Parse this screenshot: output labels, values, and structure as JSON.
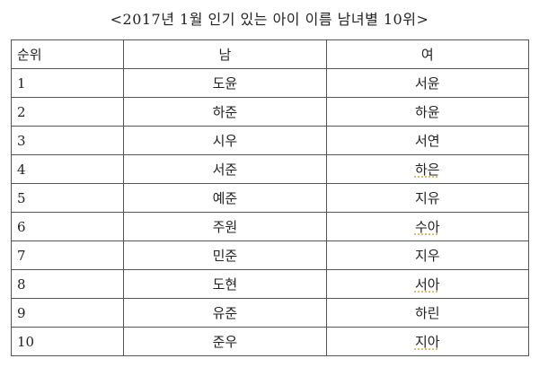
{
  "title": "<2017년 1월 인기 있는 아이 이름 남녀별 10위>",
  "table": {
    "headers": [
      "순위",
      "남",
      "여"
    ],
    "rows": [
      [
        "1",
        "도윤",
        "서윤"
      ],
      [
        "2",
        "하준",
        "하윤"
      ],
      [
        "3",
        "시우",
        "서연"
      ],
      [
        "4",
        "서준",
        "하은"
      ],
      [
        "5",
        "예준",
        "지유"
      ],
      [
        "6",
        "주원",
        "수아"
      ],
      [
        "7",
        "민준",
        "지우"
      ],
      [
        "8",
        "도현",
        "서아"
      ],
      [
        "9",
        "유준",
        "하린"
      ],
      [
        "10",
        "준우",
        "지아"
      ]
    ],
    "spellcheck_flagged": [
      "하은",
      "수아",
      "서아",
      "지아"
    ]
  }
}
